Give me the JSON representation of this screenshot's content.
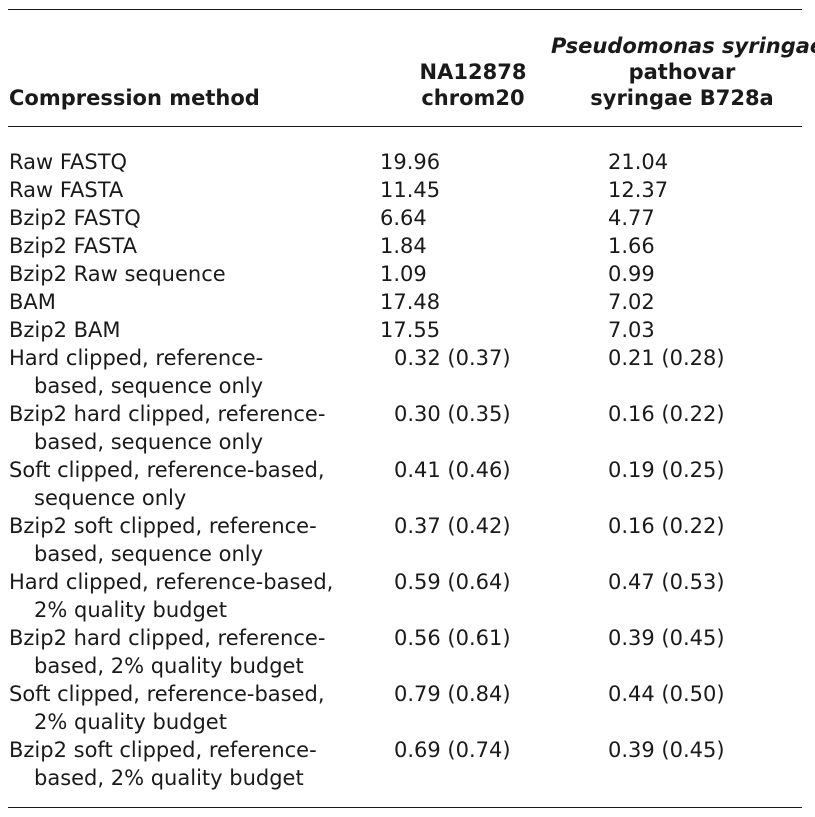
{
  "table": {
    "headers": {
      "method": "Compression method",
      "col1_line1": "NA12878",
      "col1_line2": "chrom20",
      "col2_line1": "Pseudomonas syringae",
      "col2_line2": "pathovar",
      "col2_line3": "syringae B728a"
    },
    "rows": [
      {
        "method_line1": "Raw FASTQ",
        "method_line2": "",
        "v1": "19.96",
        "v2": "21.04"
      },
      {
        "method_line1": "Raw FASTA",
        "method_line2": "",
        "v1": "11.45",
        "v2": "12.37"
      },
      {
        "method_line1": "Bzip2 FASTQ",
        "method_line2": "",
        "v1": "6.64",
        "v2": "4.77"
      },
      {
        "method_line1": "Bzip2 FASTA",
        "method_line2": "",
        "v1": "1.84",
        "v2": "1.66"
      },
      {
        "method_line1": "Bzip2 Raw sequence",
        "method_line2": "",
        "v1": "1.09",
        "v2": "0.99"
      },
      {
        "method_line1": "BAM",
        "method_line2": "",
        "v1": "17.48",
        "v2": "7.02"
      },
      {
        "method_line1": "Bzip2 BAM",
        "method_line2": "",
        "v1": "17.55",
        "v2": "7.03"
      },
      {
        "method_line1": "Hard clipped, reference-",
        "method_line2": "based, sequence only",
        "v1": "0.32 (0.37)",
        "v2": "0.21 (0.28)"
      },
      {
        "method_line1": "Bzip2 hard clipped, reference-",
        "method_line2": "based, sequence only",
        "v1": "0.30 (0.35)",
        "v2": "0.16 (0.22)"
      },
      {
        "method_line1": "Soft clipped, reference-based,",
        "method_line2": "sequence only",
        "v1": "0.41 (0.46)",
        "v2": "0.19 (0.25)"
      },
      {
        "method_line1": "Bzip2 soft clipped, reference-",
        "method_line2": "based, sequence only",
        "v1": "0.37 (0.42)",
        "v2": "0.16 (0.22)"
      },
      {
        "method_line1": "Hard clipped, reference-based,",
        "method_line2": "2% quality budget",
        "v1": "0.59 (0.64)",
        "v2": "0.47 (0.53)"
      },
      {
        "method_line1": "Bzip2 hard clipped, reference-",
        "method_line2": "based, 2% quality budget",
        "v1": "0.56 (0.61)",
        "v2": "0.39 (0.45)"
      },
      {
        "method_line1": "Soft clipped, reference-based,",
        "method_line2": "2% quality budget",
        "v1": "0.79 (0.84)",
        "v2": "0.44 (0.50)"
      },
      {
        "method_line1": "Bzip2 soft clipped, reference-",
        "method_line2": "based, 2% quality budget",
        "v1": "0.69 (0.74)",
        "v2": "0.39 (0.45)"
      }
    ]
  }
}
